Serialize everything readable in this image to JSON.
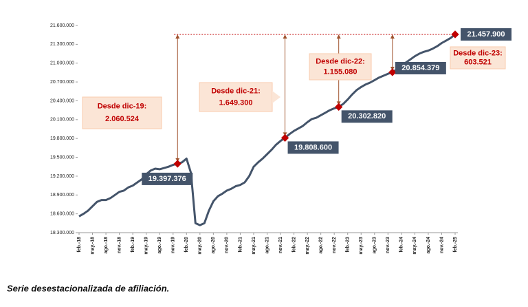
{
  "chart_data": {
    "type": "line",
    "caption": "Serie desestacionalizada de afiliación.",
    "categories": [
      "feb.-18",
      null,
      null,
      "may.-18",
      null,
      null,
      "ago.-18",
      null,
      null,
      "nov.-18",
      null,
      null,
      "feb.-19",
      null,
      null,
      "may.-19",
      null,
      null,
      "ago.-19",
      null,
      null,
      "nov.-19",
      null,
      null,
      "feb.-20",
      null,
      null,
      "may.-20",
      null,
      null,
      "ago.-20",
      null,
      null,
      "nov.-20",
      null,
      null,
      "feb.-21",
      null,
      null,
      "may.-21",
      null,
      null,
      "ago.-21",
      null,
      null,
      "nov.-21",
      null,
      null,
      "feb.-22",
      null,
      null,
      "may.-22",
      null,
      null,
      "ago.-22",
      null,
      null,
      "nov.-22",
      null,
      null,
      "feb.-23",
      null,
      null,
      "may.-23",
      null,
      null,
      "ago.-23",
      null,
      null,
      "nov.-23",
      null,
      null,
      "feb.-24",
      null,
      null,
      "may.-24",
      null,
      null,
      "ago.-24",
      null,
      null,
      "nov.-24",
      null,
      null,
      "feb.-25"
    ],
    "series": [
      {
        "color": "#44546a",
        "values": [
          18560000,
          18600000,
          18650000,
          18720000,
          18790000,
          18820000,
          18820000,
          18850000,
          18900000,
          18950000,
          18970000,
          19020000,
          19050000,
          19100000,
          19150000,
          19230000,
          19290000,
          19320000,
          19310000,
          19330000,
          19350000,
          19380000,
          19397376,
          19420000,
          19480000,
          19250000,
          18450000,
          18420000,
          18450000,
          18650000,
          18800000,
          18880000,
          18920000,
          18970000,
          19000000,
          19040000,
          19060000,
          19100000,
          19200000,
          19350000,
          19420000,
          19480000,
          19550000,
          19620000,
          19700000,
          19760000,
          19808600,
          19870000,
          19920000,
          19960000,
          20000000,
          20060000,
          20110000,
          20130000,
          20170000,
          20210000,
          20250000,
          20280000,
          20302820,
          20350000,
          20420000,
          20500000,
          20570000,
          20620000,
          20660000,
          20690000,
          20730000,
          20770000,
          20800000,
          20830000,
          20854379,
          20900000,
          20950000,
          21010000,
          21060000,
          21110000,
          21150000,
          21180000,
          21200000,
          21230000,
          21270000,
          21320000,
          21360000,
          21400000,
          21457900
        ],
        "value_labels": [
          null,
          null,
          null,
          null,
          null,
          null,
          null,
          null,
          null,
          null,
          null,
          null,
          null,
          null,
          null,
          null,
          null,
          null,
          null,
          null,
          null,
          null,
          "19.397.376",
          null,
          null,
          null,
          null,
          null,
          null,
          null,
          null,
          null,
          null,
          null,
          null,
          null,
          null,
          null,
          null,
          null,
          null,
          null,
          null,
          null,
          null,
          null,
          "19.808.600",
          null,
          null,
          null,
          null,
          null,
          null,
          null,
          null,
          null,
          null,
          null,
          "20.302.820",
          null,
          null,
          null,
          null,
          null,
          null,
          null,
          null,
          null,
          null,
          null,
          "20.854.379",
          null,
          null,
          null,
          null,
          null,
          null,
          null,
          null,
          null,
          null,
          null,
          null,
          null,
          "21.457.900"
        ]
      }
    ],
    "annotations": [
      {
        "title": "Desde dic-19:",
        "text": "2.060.524"
      },
      {
        "title": "Desde dic-21:",
        "text": "1.649.300"
      },
      {
        "title": "Desde dic-22:",
        "text": "1.155.080"
      },
      {
        "title": "Desde dic-23:",
        "text": "603.521"
      }
    ],
    "ylim": [
      18300000,
      21600000
    ],
    "yticks": [
      {
        "value": 18300000,
        "label": "18.300.000"
      },
      {
        "value": 18600000,
        "label": "18.600.000"
      },
      {
        "value": 18900000,
        "label": "18.900.000"
      },
      {
        "value": 19200000,
        "label": "19.200.000"
      },
      {
        "value": 19500000,
        "label": "19.500.000"
      },
      {
        "value": 19800000,
        "label": "19.800.000"
      },
      {
        "value": 20100000,
        "label": "20.100.000"
      },
      {
        "value": 20400000,
        "label": "20.400.000"
      },
      {
        "value": 20700000,
        "label": "20.700.000"
      },
      {
        "value": 21000000,
        "label": "21.000.000"
      },
      {
        "value": 21300000,
        "label": "21.300.000"
      },
      {
        "value": 21600000,
        "label": "21.600.000"
      }
    ]
  }
}
